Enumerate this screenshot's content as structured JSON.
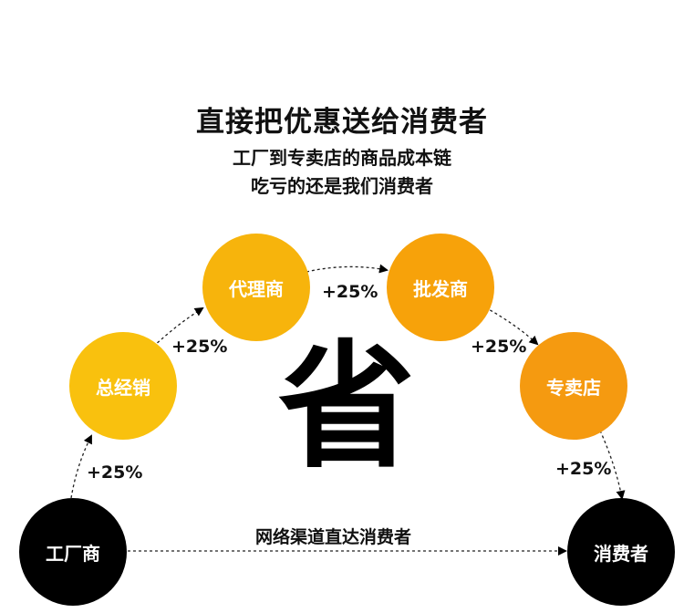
{
  "title": "直接把优惠送给消费者",
  "subtitle_lines": [
    "工厂到专卖店的商品成本链",
    "吃亏的还是我们消费者"
  ],
  "center_char": "省",
  "direct_label": "网络渠道直达消费者",
  "nodes": [
    {
      "label": "工厂商",
      "color": "#000000"
    },
    {
      "label": "总经销",
      "color": "#f9c10e"
    },
    {
      "label": "代理商",
      "color": "#f7b40c"
    },
    {
      "label": "批发商",
      "color": "#f7a20a"
    },
    {
      "label": "专卖店",
      "color": "#f59a10"
    },
    {
      "label": "消费者",
      "color": "#000000"
    }
  ],
  "markups": [
    "+25%",
    "+25%",
    "+25%",
    "+25%",
    "+25%"
  ]
}
